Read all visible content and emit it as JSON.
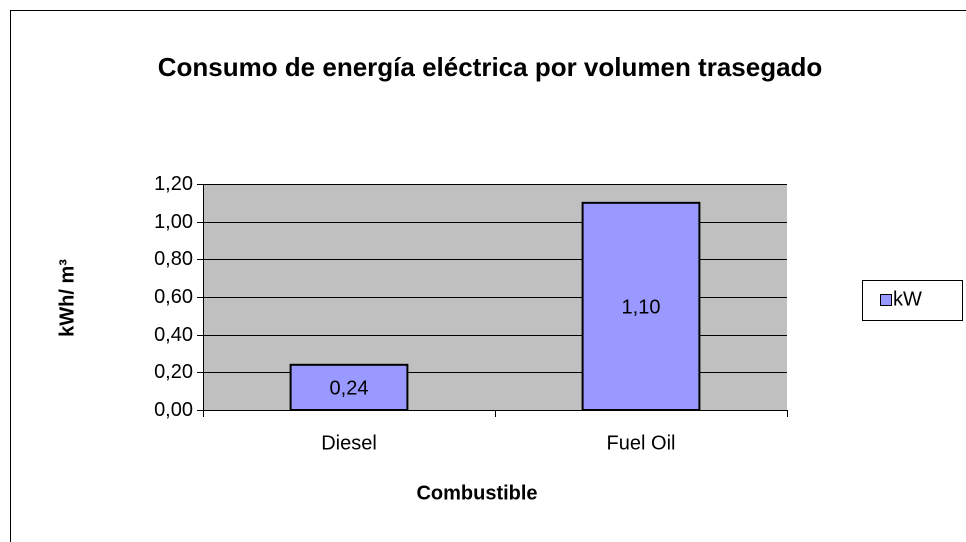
{
  "chart_data": {
    "type": "bar",
    "title": "Consumo de energía eléctrica por volumen trasegado",
    "x_label": "Combustible",
    "y_label": "kWh/ m³",
    "categories": [
      "Diesel",
      "Fuel Oil"
    ],
    "series": [
      {
        "name": "kW",
        "color": "#9999ff",
        "values": [
          0.24,
          1.1
        ],
        "value_labels": [
          "0,24",
          "1,10"
        ]
      }
    ],
    "ylim": [
      0,
      1.2
    ],
    "yticks": [
      {
        "value": 0,
        "label": "0,00"
      },
      {
        "value": 0.2,
        "label": "0,20"
      },
      {
        "value": 0.4,
        "label": "0,40"
      },
      {
        "value": 0.6,
        "label": "0,60"
      },
      {
        "value": 0.8,
        "label": "0,80"
      },
      {
        "value": 1.0,
        "label": "1,00"
      },
      {
        "value": 1.2,
        "label": "1,20"
      }
    ],
    "grid": true,
    "legend": "right"
  }
}
